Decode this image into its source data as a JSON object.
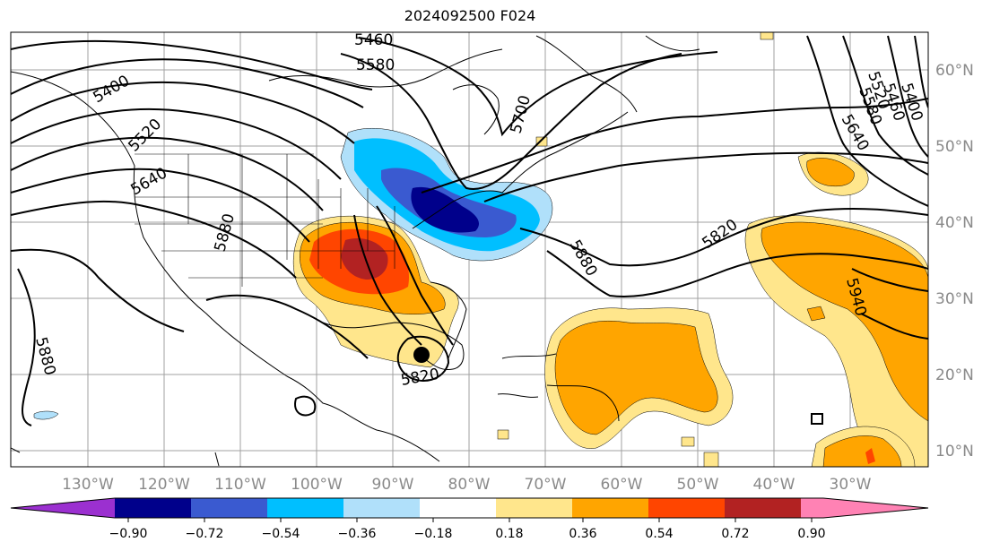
{
  "title": "2024092500 F024",
  "map": {
    "lon_range": [
      -140,
      -20
    ],
    "lat_range": [
      8,
      65
    ],
    "lon_ticks": [
      "130°W",
      "120°W",
      "110°W",
      "100°W",
      "90°W",
      "80°W",
      "70°W",
      "60°W",
      "50°W",
      "40°W",
      "30°W"
    ],
    "lat_ticks": [
      "60°N",
      "50°N",
      "40°N",
      "30°N",
      "20°N",
      "10°N"
    ],
    "contour_labels": [
      "5460",
      "5580",
      "5400",
      "5520",
      "5640",
      "5700",
      "5880",
      "5880",
      "5820",
      "5820",
      "5880",
      "5940",
      "5640",
      "5580",
      "5520",
      "5460",
      "5400"
    ]
  },
  "colorbar": {
    "ticks": [
      "−0.90",
      "−0.72",
      "−0.54",
      "−0.36",
      "−0.18",
      "0.18",
      "0.36",
      "0.54",
      "0.72",
      "0.90"
    ],
    "colors": {
      "under": "#9b30d0",
      "c1": "#00008b",
      "c2": "#3a5ad0",
      "c3": "#00bfff",
      "c4": "#b0e0fa",
      "c5": "#ffffff",
      "c6": "#ffe68c",
      "c7": "#ffa500",
      "c8": "#ff4500",
      "c9": "#b22222",
      "over": "#ff82b4"
    }
  }
}
